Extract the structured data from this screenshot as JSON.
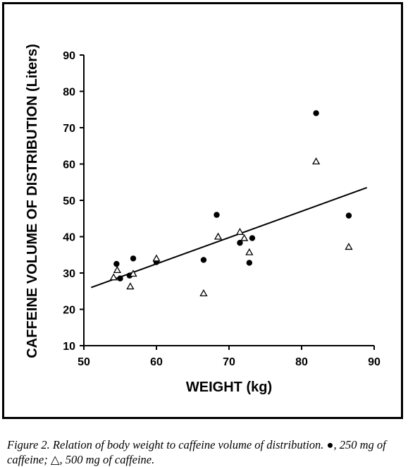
{
  "chart_data": {
    "type": "scatter",
    "xlabel": "WEIGHT (kg)",
    "ylabel": "CAFFEINE VOLUME OF DISTRIBUTION (Liters)",
    "xlim": [
      50,
      90
    ],
    "ylim": [
      10,
      90
    ],
    "xticks": [
      50,
      60,
      70,
      80,
      90
    ],
    "yticks": [
      10,
      20,
      30,
      40,
      50,
      60,
      70,
      80,
      90
    ],
    "grid": false,
    "legend": "none",
    "series": [
      {
        "marker": "filled-circle",
        "points": [
          {
            "x": 54.5,
            "y": 32.5
          },
          {
            "x": 55.0,
            "y": 28.5
          },
          {
            "x": 56.3,
            "y": 29.3
          },
          {
            "x": 56.8,
            "y": 34.0
          },
          {
            "x": 60.0,
            "y": 33.0
          },
          {
            "x": 66.5,
            "y": 33.6
          },
          {
            "x": 68.3,
            "y": 46.0
          },
          {
            "x": 71.5,
            "y": 38.3
          },
          {
            "x": 72.8,
            "y": 32.8
          },
          {
            "x": 73.2,
            "y": 39.6
          },
          {
            "x": 82.0,
            "y": 74.0
          },
          {
            "x": 86.5,
            "y": 45.8
          }
        ]
      },
      {
        "marker": "open-triangle",
        "points": [
          {
            "x": 54.1,
            "y": 28.8
          },
          {
            "x": 54.6,
            "y": 30.8
          },
          {
            "x": 56.4,
            "y": 26.3
          },
          {
            "x": 56.8,
            "y": 29.8
          },
          {
            "x": 60.0,
            "y": 34.0
          },
          {
            "x": 66.5,
            "y": 24.4
          },
          {
            "x": 68.5,
            "y": 40.0
          },
          {
            "x": 71.5,
            "y": 41.3
          },
          {
            "x": 72.1,
            "y": 39.6
          },
          {
            "x": 72.8,
            "y": 35.7
          },
          {
            "x": 82.0,
            "y": 60.7
          },
          {
            "x": 86.5,
            "y": 37.2
          }
        ]
      }
    ],
    "regression_line": {
      "x": [
        51,
        89
      ],
      "y": [
        26,
        53.5
      ]
    }
  },
  "caption": {
    "label": "Figure 2.",
    "text": "Relation of body weight to caffeine volume of distribution. ●, 250 mg of caffeine; △, 500 mg of caffeine."
  }
}
